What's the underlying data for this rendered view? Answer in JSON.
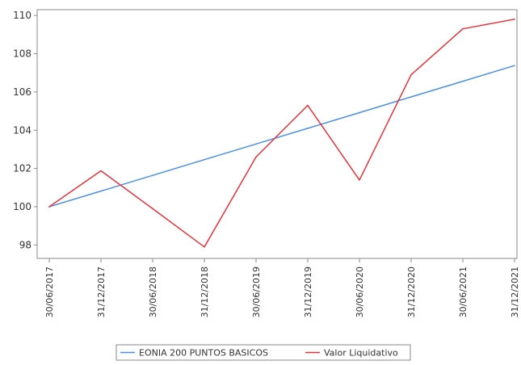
{
  "chart_data": {
    "type": "line",
    "categories": [
      "30/06/2017",
      "31/12/2017",
      "30/06/2018",
      "31/12/2018",
      "30/06/2019",
      "31/12/2019",
      "30/06/2020",
      "31/12/2020",
      "30/06/2021",
      "31/12/2021"
    ],
    "series": [
      {
        "name": "EONIA 200 PUNTOS BASICOS",
        "color": "#4a8fe8",
        "values": [
          100.0,
          100.82,
          101.64,
          102.46,
          103.28,
          104.1,
          104.92,
          105.74,
          106.56,
          107.38
        ]
      },
      {
        "name": "Valor Liquidativo",
        "color": "#e8323a",
        "values": [
          100.0,
          101.88,
          99.9,
          97.9,
          102.6,
          105.3,
          101.4,
          106.9,
          109.3,
          109.8
        ]
      }
    ],
    "yticks": [
      98,
      100,
      102,
      104,
      106,
      108,
      110
    ],
    "ylim": [
      97.3,
      110.3
    ],
    "title": "",
    "xlabel": "",
    "ylabel": "",
    "grid": false,
    "legend_position": "bottom-center"
  }
}
